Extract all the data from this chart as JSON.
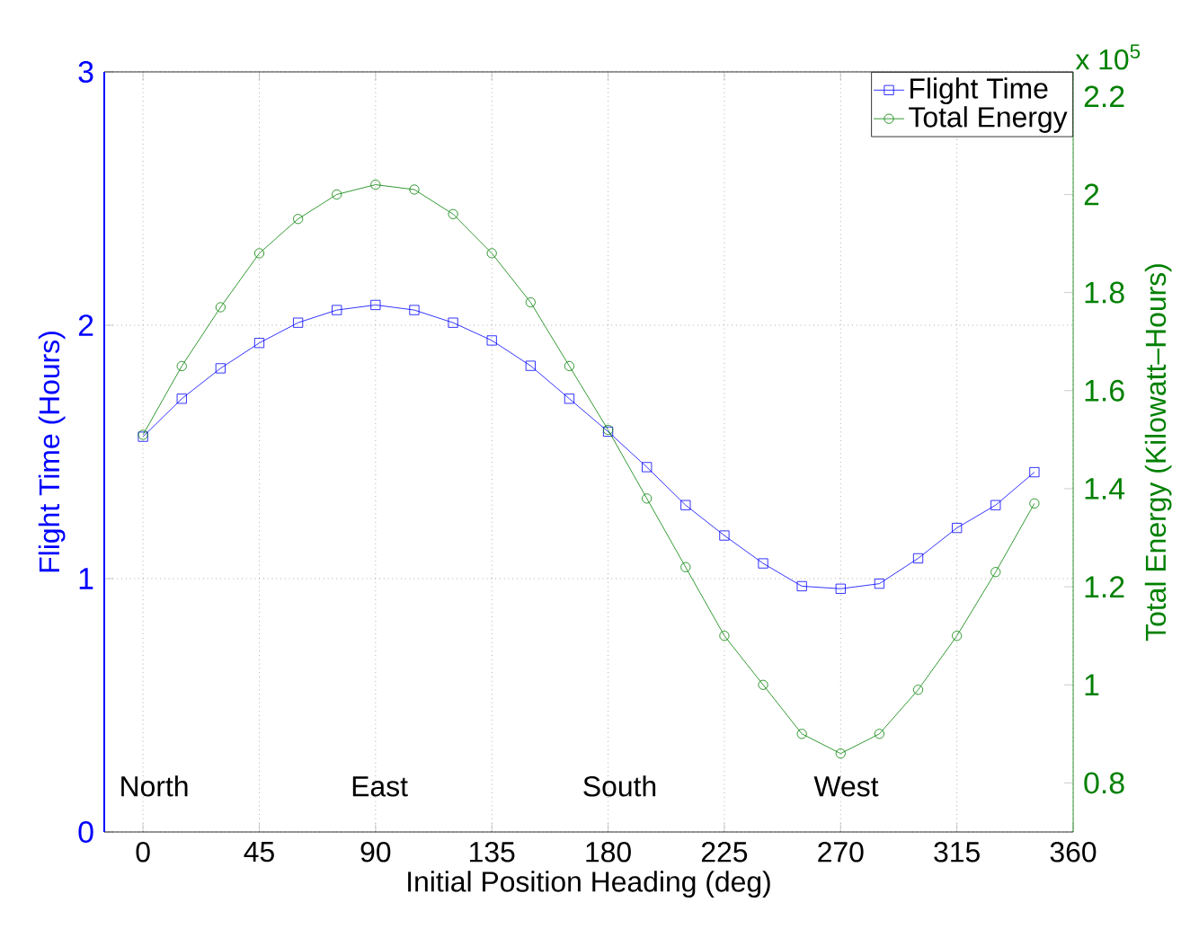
{
  "chart_data": {
    "type": "line",
    "xlabel": "Initial Position Heading (deg)",
    "ylabel": "Flight Time (Hours)",
    "y2label": "Total Energy (Kilowatt–Hours)",
    "x": [
      0,
      15,
      30,
      45,
      60,
      75,
      90,
      105,
      120,
      135,
      150,
      165,
      180,
      195,
      210,
      225,
      240,
      255,
      270,
      285,
      300,
      315,
      330,
      345
    ],
    "series": [
      {
        "name": "Flight Time",
        "color": "#0000ff",
        "marker": "square",
        "values": [
          1.56,
          1.71,
          1.83,
          1.93,
          2.01,
          2.06,
          2.08,
          2.06,
          2.01,
          1.94,
          1.84,
          1.71,
          1.58,
          1.44,
          1.29,
          1.17,
          1.06,
          0.97,
          0.96,
          0.98,
          1.08,
          1.2,
          1.29,
          1.42
        ]
      },
      {
        "name": "Total Energy",
        "color": "#008000",
        "marker": "circle",
        "axis": "y2",
        "values": [
          1.51,
          1.65,
          1.77,
          1.88,
          1.95,
          2.0,
          2.02,
          2.01,
          1.96,
          1.88,
          1.78,
          1.65,
          1.52,
          1.38,
          1.24,
          1.1,
          1.0,
          0.9,
          0.86,
          0.9,
          0.99,
          1.1,
          1.23,
          1.37
        ]
      }
    ],
    "xlim": [
      -15,
      360
    ],
    "xticks": [
      0,
      45,
      90,
      135,
      180,
      225,
      270,
      315,
      360
    ],
    "ylim": [
      0,
      3
    ],
    "yticks": [
      0,
      1,
      2,
      3
    ],
    "y2lim": [
      0.7,
      2.25
    ],
    "y2ticks": [
      0.8,
      1,
      1.2,
      1.4,
      1.6,
      1.8,
      2,
      2.2
    ],
    "annotations": [
      "North",
      "East",
      "South",
      "West",
      "x 10$^{5}$"
    ],
    "grid": true,
    "legend": "top right",
    "line_style": "solid"
  }
}
